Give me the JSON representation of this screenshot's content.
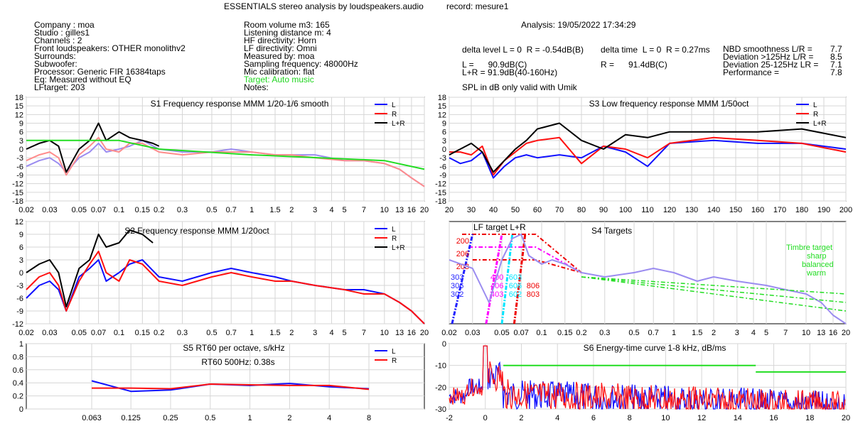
{
  "header": {
    "title": "ESSENTIALS stereo analysis by loudspeakers.audio",
    "record": "record: mesure1",
    "analysis": "Analysis: 19/05/2022 17:34:29"
  },
  "info_left": [
    "Company : moa",
    "Studio : gilles1",
    "Channels : 2",
    "Front loudspeakers: OTHER monolithv2",
    "Surrounds:",
    "Subwoofer:",
    "Processor: Generic FIR 16384taps",
    "Eq: Measured without EQ",
    "LFtarget: 203"
  ],
  "info_mid": [
    "Room volume m3: 165",
    "Listening distance m: 4",
    "HF directivity: Horn",
    "LF directivity: Omni",
    "Measured by: moa",
    "Sampling frequency: 48000Hz",
    "Mic calibration: flat"
  ],
  "info_mid_target": "Target: Auto music",
  "info_mid_notes": "Notes:",
  "levels": {
    "delta_level": "delta level L = 0  R = -0.54dB(B)",
    "delta_time": "delta time  L = 0  R = 0.27ms",
    "L": "L =      90.9dB(C)",
    "R": "R =      91.4dB(C)",
    "LR": "L+R = 91.9dB(40-160Hz)",
    "spl_note": "SPL in dB only valid with Umik"
  },
  "scores": [
    {
      "label": "NBD smoothness L/R =",
      "value": "7.7"
    },
    {
      "label": "Deviation >125Hz L/R =",
      "value": "8.5"
    },
    {
      "label": "Deviation 25-125Hz LR =",
      "value": "7.1"
    },
    {
      "label": "Performance =",
      "value": "7.8"
    }
  ],
  "colors": {
    "L": "#1010ff",
    "R": "#ff1010",
    "LR": "#000000",
    "target": "#22dd22",
    "pink": "#ff00ff",
    "cyan": "#00e5ff",
    "light": "#9b8cf0",
    "salmon": "#ff8c8c"
  },
  "chart_data": [
    {
      "id": "S1",
      "type": "line",
      "title": "S1  Frequency response MMM 1/20-1/6 smooth",
      "x_scale": "log",
      "xlim": [
        0.02,
        20
      ],
      "xticks": [
        "0.02",
        "0.03",
        "0.05",
        "0.07",
        "0.1",
        "0.15",
        "0.2",
        "0.3",
        "0.5",
        "0.7",
        "1",
        "1.5",
        "2",
        "3",
        "4",
        "5",
        "7",
        "10",
        "13",
        "16",
        "20"
      ],
      "ylim": [
        -18,
        18
      ],
      "yticks": [
        "18",
        "15",
        "12",
        "9",
        "6",
        "3",
        "0",
        "-3",
        "-6",
        "-9",
        "-12",
        "-15",
        "-18"
      ],
      "legend": [
        "L",
        "R",
        "L+R"
      ],
      "series": [
        {
          "name": "L",
          "x": [
            0.02,
            0.025,
            0.03,
            0.035,
            0.04,
            0.05,
            0.06,
            0.07,
            0.08,
            0.1,
            0.12,
            0.15,
            0.2,
            0.3,
            0.5,
            0.7,
            1,
            1.5,
            2,
            3,
            5,
            7,
            10,
            13,
            16,
            20
          ],
          "y": [
            -6,
            -4,
            -3,
            -5,
            -8,
            -3,
            -1,
            2,
            -1,
            0,
            1,
            3,
            0,
            -1,
            -1,
            0,
            -1,
            -2,
            -2,
            -2,
            -4,
            -4,
            -5,
            -7,
            -10,
            -13
          ]
        },
        {
          "name": "R",
          "x": [
            0.02,
            0.025,
            0.03,
            0.035,
            0.04,
            0.05,
            0.06,
            0.07,
            0.08,
            0.1,
            0.12,
            0.15,
            0.2,
            0.3,
            0.5,
            0.7,
            1,
            1.5,
            2,
            3,
            5,
            7,
            10,
            13,
            16,
            20
          ],
          "y": [
            -4,
            -2,
            -1,
            -3,
            -9,
            -2,
            1,
            4,
            0,
            -1,
            2,
            2,
            -1,
            -2,
            -1,
            -1,
            -1,
            -2,
            -2,
            -3,
            -4,
            -4,
            -5,
            -7,
            -10,
            -13
          ]
        },
        {
          "name": "L+R",
          "x": [
            0.02,
            0.025,
            0.03,
            0.035,
            0.04,
            0.05,
            0.06,
            0.07,
            0.08,
            0.1,
            0.12,
            0.15,
            0.18,
            0.2
          ],
          "y": [
            0,
            2,
            3,
            1,
            -8,
            0,
            3,
            9,
            3,
            6,
            4,
            3,
            2,
            1
          ]
        },
        {
          "name": "target",
          "x": [
            0.02,
            0.1,
            0.2,
            1,
            10,
            20
          ],
          "y": [
            3,
            3,
            0,
            -2,
            -4,
            -7
          ]
        }
      ]
    },
    {
      "id": "S3",
      "type": "line",
      "title": "S3  Low frequency response MMM 1/50oct",
      "x_scale": "linear",
      "xlim": [
        20,
        200
      ],
      "xticks": [
        "20",
        "30",
        "40",
        "50",
        "60",
        "70",
        "80",
        "90",
        "100",
        "110",
        "120",
        "130",
        "140",
        "150",
        "160",
        "170",
        "180",
        "190",
        "200"
      ],
      "ylim": [
        -18,
        18
      ],
      "yticks": [
        "18",
        "15",
        "12",
        "9",
        "6",
        "3",
        "0",
        "-3",
        "-6",
        "-9",
        "-12",
        "-15",
        "-18"
      ],
      "legend": [
        "L",
        "R",
        "L+R"
      ],
      "series": [
        {
          "name": "L",
          "x": [
            20,
            25,
            30,
            35,
            40,
            45,
            50,
            55,
            60,
            70,
            80,
            90,
            100,
            110,
            120,
            140,
            160,
            180,
            200
          ],
          "y": [
            -3,
            -5,
            -4,
            -1,
            -10,
            -6,
            -3,
            -2,
            -3,
            -2,
            -3,
            1,
            -1,
            -6,
            2,
            3,
            2,
            2,
            0
          ]
        },
        {
          "name": "R",
          "x": [
            20,
            25,
            30,
            35,
            40,
            45,
            50,
            55,
            60,
            70,
            80,
            90,
            100,
            110,
            120,
            140,
            160,
            180,
            200
          ],
          "y": [
            -1,
            -1,
            -2,
            1,
            -9,
            -4,
            -1,
            2,
            3,
            4,
            -5,
            1,
            0,
            -3,
            2,
            4,
            3,
            2,
            -1
          ]
        },
        {
          "name": "L+R",
          "x": [
            20,
            25,
            30,
            35,
            40,
            45,
            50,
            55,
            60,
            70,
            80,
            90,
            100,
            110,
            120,
            140,
            160,
            180,
            200
          ],
          "y": [
            -2,
            0,
            2,
            -1,
            -8,
            -4,
            0,
            3,
            7,
            9,
            3,
            0,
            5,
            4,
            6,
            6,
            6,
            7,
            4
          ]
        }
      ]
    },
    {
      "id": "S2",
      "type": "line",
      "title": "S2  Frequency response MMM 1/20oct",
      "x_scale": "log",
      "xlim": [
        0.02,
        20
      ],
      "xticks": [
        "0.02",
        "0.03",
        "0.05",
        "0.07",
        "0.1",
        "0.15",
        "0.2",
        "0.3",
        "0.5",
        "0.7",
        "1",
        "1.5",
        "2",
        "3",
        "4",
        "5",
        "7",
        "10",
        "13",
        "16",
        "20"
      ],
      "ylim": [
        -12,
        12
      ],
      "yticks": [
        "12",
        "9",
        "6",
        "3",
        "0",
        "-3",
        "-6",
        "-9",
        "-12"
      ],
      "legend": [
        "L",
        "R",
        "L+R"
      ],
      "series": [
        {
          "name": "L",
          "x": [
            0.02,
            0.025,
            0.03,
            0.035,
            0.04,
            0.05,
            0.06,
            0.07,
            0.08,
            0.1,
            0.12,
            0.15,
            0.2,
            0.3,
            0.5,
            0.7,
            1,
            1.5,
            2,
            3,
            5,
            7,
            10,
            13,
            16,
            20
          ],
          "y": [
            -6,
            -3,
            -2,
            -4,
            -9,
            -1,
            1,
            3,
            -2,
            0,
            2,
            3,
            -1,
            -2,
            0,
            1,
            0,
            -1,
            -2,
            -3,
            -4,
            -4,
            -5,
            -7,
            -9,
            -12
          ]
        },
        {
          "name": "R",
          "x": [
            0.02,
            0.025,
            0.03,
            0.035,
            0.04,
            0.05,
            0.06,
            0.07,
            0.08,
            0.1,
            0.12,
            0.15,
            0.2,
            0.3,
            0.5,
            0.7,
            1,
            1.5,
            2,
            3,
            5,
            7,
            10,
            13,
            16,
            20
          ],
          "y": [
            -4,
            -1,
            0,
            -3,
            -9,
            -2,
            2,
            5,
            0,
            -2,
            3,
            2,
            -2,
            -3,
            -1,
            0,
            -1,
            -2,
            -2,
            -3,
            -4,
            -5,
            -5,
            -7,
            -9,
            -12
          ]
        },
        {
          "name": "L+R",
          "x": [
            0.02,
            0.025,
            0.03,
            0.035,
            0.04,
            0.05,
            0.06,
            0.07,
            0.08,
            0.1,
            0.12,
            0.15,
            0.18
          ],
          "y": [
            0,
            2,
            3,
            0,
            -8,
            1,
            3,
            9,
            6,
            7,
            10,
            9,
            7
          ]
        }
      ]
    },
    {
      "id": "S4",
      "type": "line",
      "title": "S4 Targets",
      "x_scale": "log",
      "xlim": [
        0.02,
        20
      ],
      "xticks": [
        "0.02",
        "0.03",
        "0.05",
        "0.07",
        "0.1",
        "0.15",
        "0.2",
        "0.3",
        "0.5",
        "0.7",
        "1",
        "1.5",
        "2",
        "3",
        "4",
        "5",
        "7",
        "10",
        "13",
        "16",
        "20"
      ],
      "ylim": [
        -12,
        12
      ],
      "annotations": [
        "LF target L+R",
        "200",
        "206",
        "203",
        "303",
        "306",
        "302",
        "400",
        "406",
        "403",
        "603",
        "606",
        "602",
        "806",
        "803"
      ],
      "legend_title": "Timbre target",
      "legend": [
        "sharp",
        "balanced",
        "warm"
      ],
      "series": [
        {
          "name": "measured",
          "x": [
            0.02,
            0.03,
            0.04,
            0.05,
            0.06,
            0.07,
            0.08,
            0.1,
            0.12,
            0.15,
            0.2,
            0.3,
            0.5,
            0.7,
            1,
            1.5,
            2,
            3,
            5,
            7,
            10,
            13,
            16,
            20
          ],
          "y": [
            3,
            1,
            -7,
            3,
            8,
            9,
            4,
            2,
            3,
            2,
            0,
            -1,
            0,
            1,
            0,
            -2,
            -1,
            -2,
            -3,
            -4,
            -5,
            -7,
            -10,
            -12
          ]
        },
        {
          "name": "sharp",
          "x": [
            0.2,
            20
          ],
          "y": [
            -1,
            -5
          ]
        },
        {
          "name": "balanced",
          "x": [
            0.2,
            20
          ],
          "y": [
            -1,
            -7
          ]
        },
        {
          "name": "warm",
          "x": [
            0.2,
            20
          ],
          "y": [
            -1,
            -9
          ]
        }
      ]
    },
    {
      "id": "S5",
      "type": "line",
      "title": "S5  RT60 per octave, s/kHz",
      "annotation": "RT60 500Hz: 0.38s",
      "x_scale": "log2",
      "xlim": [
        0.063,
        8
      ],
      "xticks": [
        "0.063",
        "0.125",
        "0.25",
        "0.5",
        "1",
        "2",
        "4",
        "8"
      ],
      "ylim": [
        0,
        1
      ],
      "yticks": [
        "1",
        "0.8",
        "0.6",
        "0.4",
        "0.2",
        "0"
      ],
      "legend": [
        "L",
        "R"
      ],
      "series": [
        {
          "name": "L",
          "x": [
            0.063,
            0.125,
            0.25,
            0.5,
            1,
            2,
            4,
            8
          ],
          "y": [
            0.43,
            0.27,
            0.29,
            0.38,
            0.36,
            0.39,
            0.34,
            0.31
          ]
        },
        {
          "name": "R",
          "x": [
            0.063,
            0.125,
            0.25,
            0.5,
            1,
            2,
            4,
            8
          ],
          "y": [
            0.32,
            0.32,
            0.31,
            0.38,
            0.37,
            0.36,
            0.36,
            0.3
          ]
        }
      ]
    },
    {
      "id": "S6",
      "type": "line",
      "title": "S6  Energy-time curve 1-8 kHz, dB/ms",
      "x_scale": "linear",
      "xlim": [
        -2,
        20
      ],
      "xticks": [
        "-2",
        "0",
        "2",
        "4",
        "6",
        "8",
        "10",
        "12",
        "14",
        "16",
        "18",
        "20"
      ],
      "ylim": [
        -30,
        0
      ],
      "yticks": [
        "0",
        "-10",
        "-20",
        "-30"
      ],
      "target_lines": [
        {
          "x": [
            1,
            15
          ],
          "y": [
            -10,
            -10
          ]
        },
        {
          "x": [
            15,
            20
          ],
          "y": [
            -13,
            -13
          ]
        }
      ]
    }
  ]
}
